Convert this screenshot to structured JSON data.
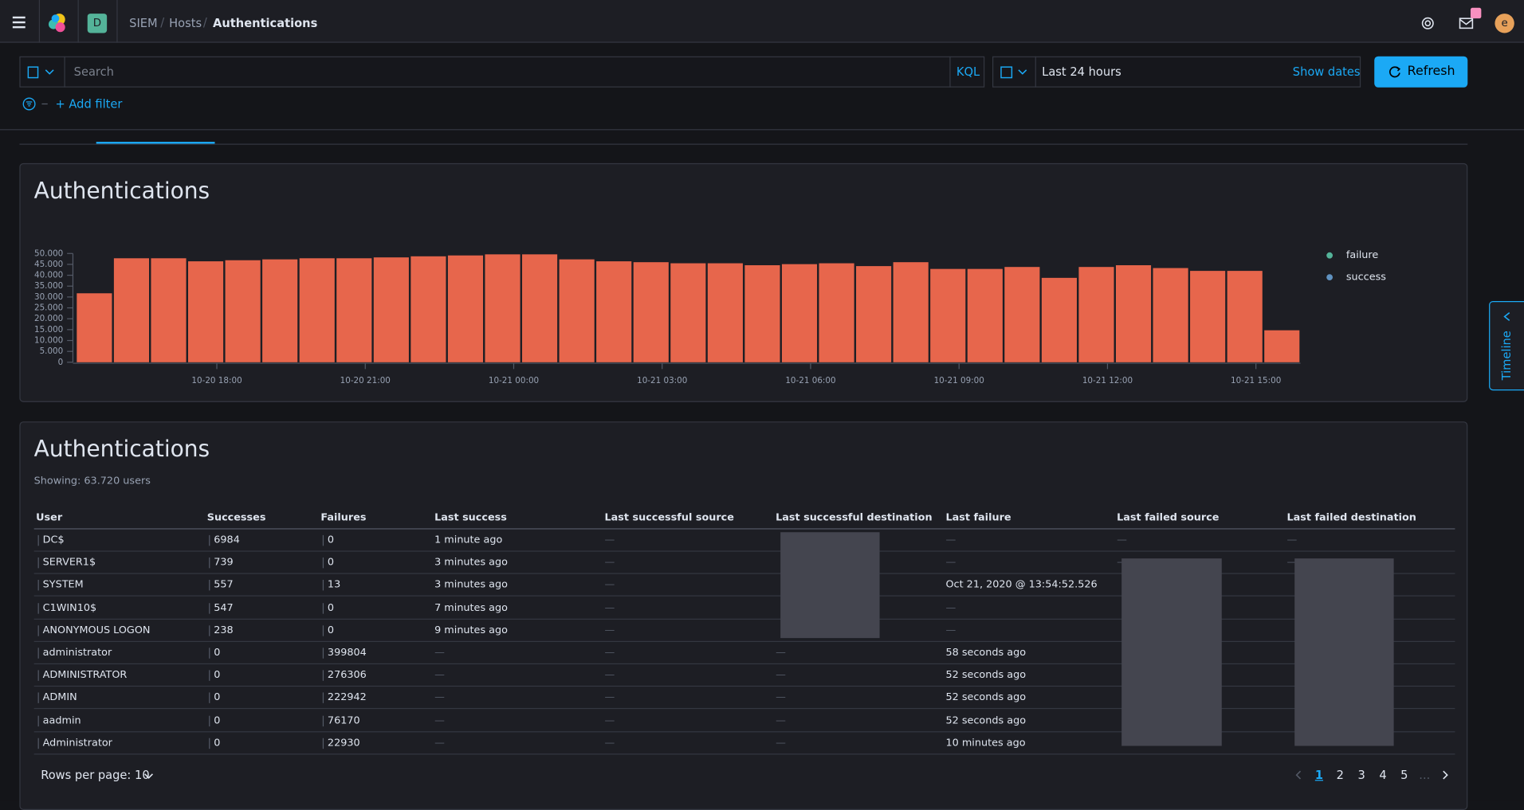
{
  "header": {
    "space": "D",
    "breadcrumbs": [
      "SIEM",
      "Hosts",
      "Authentications"
    ],
    "avatar": "e"
  },
  "query": {
    "placeholder": "Search",
    "language": "KQL",
    "time_range": "Last 24 hours",
    "show_dates": "Show dates",
    "refresh": "Refresh",
    "add_filter": "+ Add filter"
  },
  "chart_data": {
    "type": "bar",
    "title": "Authentications",
    "categories": [
      null,
      null,
      null,
      null,
      null,
      null,
      null,
      null,
      null,
      null,
      null,
      null,
      null,
      null,
      null,
      null,
      null,
      null,
      null,
      null,
      null,
      null,
      null,
      null,
      null,
      null,
      null,
      null,
      null,
      null,
      null,
      null,
      null
    ],
    "series": [
      {
        "name": "failure",
        "color": "#e7664c",
        "legend_color": "#54b399",
        "values": [
          31700,
          47800,
          47800,
          46400,
          46900,
          47300,
          47800,
          47800,
          48200,
          48700,
          49100,
          49600,
          49600,
          47300,
          46400,
          46000,
          45500,
          45500,
          44600,
          45100,
          45500,
          44200,
          46000,
          42900,
          42900,
          43800,
          38800,
          43800,
          44600,
          43300,
          42000,
          42000,
          14700
        ]
      },
      {
        "name": "success",
        "color": "#6092c0",
        "legend_color": "#6092c0",
        "values": [
          0,
          0,
          0,
          0,
          0,
          0,
          0,
          0,
          0,
          0,
          0,
          0,
          0,
          0,
          0,
          0,
          0,
          0,
          0,
          0,
          0,
          0,
          0,
          0,
          0,
          0,
          0,
          0,
          0,
          0,
          0,
          0,
          0
        ]
      }
    ],
    "stacked": true,
    "xlim": [
      0,
      33
    ],
    "xticks": [
      {
        "value": 3.8,
        "label": "10-20 18:00"
      },
      {
        "value": 7.8,
        "label": "10-20 21:00"
      },
      {
        "value": 11.8,
        "label": "10-21 00:00"
      },
      {
        "value": 15.8,
        "label": "10-21 03:00"
      },
      {
        "value": 19.8,
        "label": "10-21 06:00"
      },
      {
        "value": 23.8,
        "label": "10-21 09:00"
      },
      {
        "value": 27.8,
        "label": "10-21 12:00"
      },
      {
        "value": 31.8,
        "label": "10-21 15:00"
      }
    ],
    "ylim": [
      0,
      50000
    ],
    "yticks": [
      0,
      {
        "value": 5000,
        "label": "5.000"
      },
      {
        "value": 10000,
        "label": "10.000"
      },
      {
        "value": 15000,
        "label": "15.000"
      },
      {
        "value": 20000,
        "label": "20.000"
      },
      {
        "value": 25000,
        "label": "25.000"
      },
      {
        "value": 30000,
        "label": "30.000"
      },
      {
        "value": 35000,
        "label": "35.000"
      },
      {
        "value": 40000,
        "label": "40.000"
      },
      {
        "value": 45000,
        "label": "45.000"
      },
      {
        "value": 50000,
        "label": "50.000"
      }
    ],
    "grid": false,
    "legend": "right"
  },
  "table": {
    "title": "Authentications",
    "subtitle": "Showing: 63.720 users",
    "columns": [
      "User",
      "Successes",
      "Failures",
      "Last success",
      "Last successful source",
      "Last successful destination",
      "Last failure",
      "Last failed source",
      "Last failed destination"
    ],
    "rows": [
      [
        "DC$",
        "6984",
        "0",
        "1 minute ago",
        "—",
        null,
        "—",
        "—",
        "—"
      ],
      [
        "SERVER1$",
        "739",
        "0",
        "3 minutes ago",
        "—",
        null,
        "—",
        "—",
        "—"
      ],
      [
        "SYSTEM",
        "557",
        "13",
        "3 minutes ago",
        "—",
        null,
        "Oct 21, 2020 @ 13:54:52.526",
        null,
        null
      ],
      [
        "C1WIN10$",
        "547",
        "0",
        "7 minutes ago",
        "—",
        null,
        "—",
        null,
        null
      ],
      [
        "ANONYMOUS LOGON",
        "238",
        "0",
        "9 minutes ago",
        "—",
        null,
        "—",
        null,
        null
      ],
      [
        "administrator",
        "0",
        "399804",
        "—",
        "—",
        "—",
        "58 seconds ago",
        null,
        null
      ],
      [
        "ADMINISTRATOR",
        "0",
        "276306",
        "—",
        "—",
        "—",
        "52 seconds ago",
        null,
        null
      ],
      [
        "ADMIN",
        "0",
        "222942",
        "—",
        "—",
        "—",
        "52 seconds ago",
        null,
        null
      ],
      [
        "aadmin",
        "0",
        "76170",
        "—",
        "—",
        "—",
        "52 seconds ago",
        null,
        null
      ],
      [
        "Administrator",
        "0",
        "22930",
        "—",
        "—",
        "—",
        "10 minutes ago",
        null,
        null
      ]
    ]
  },
  "pagination": {
    "rows_per_page": "Rows per page: 10",
    "pages": [
      "1",
      "2",
      "3",
      "4",
      "5"
    ],
    "ellipsis": "..."
  },
  "timeline": "Timeline"
}
